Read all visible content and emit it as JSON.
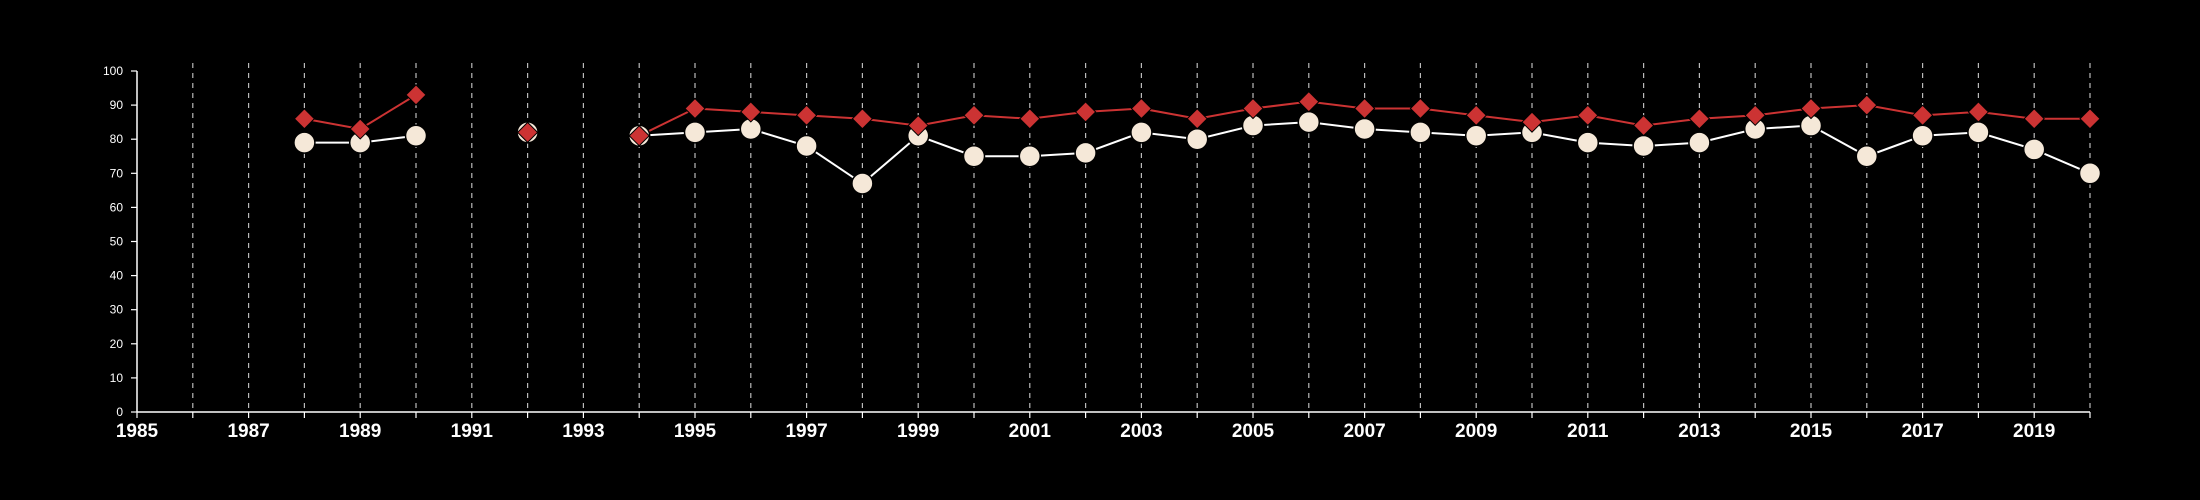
{
  "chart_data": {
    "type": "line",
    "title": "",
    "xlabel": "",
    "ylabel": "",
    "xlim": [
      1985,
      2020
    ],
    "ylim": [
      0,
      100
    ],
    "grid": "vertical dashed lines at each year",
    "legend": "none",
    "x_ticks": [
      1985,
      1987,
      1989,
      1991,
      1993,
      1995,
      1997,
      1999,
      2001,
      2003,
      2005,
      2007,
      2009,
      2011,
      2013,
      2015,
      2017,
      2019
    ],
    "y_ticks": [
      0,
      10,
      20,
      30,
      40,
      50,
      60,
      70,
      80,
      90,
      100
    ],
    "x": [
      1988,
      1989,
      1990,
      1992,
      1994,
      1995,
      1996,
      1997,
      1998,
      1999,
      2000,
      2001,
      2002,
      2003,
      2004,
      2005,
      2006,
      2007,
      2008,
      2009,
      2010,
      2011,
      2012,
      2013,
      2014,
      2015,
      2016,
      2017,
      2018,
      2019,
      2020
    ],
    "segments": [
      [
        0,
        2
      ],
      [
        3,
        3
      ],
      [
        4,
        30
      ]
    ],
    "series": [
      {
        "marker": "diamond",
        "color": "#cc3333",
        "values": [
          86,
          83,
          93,
          82,
          81,
          89,
          88,
          87,
          86,
          84,
          87,
          86,
          88,
          89,
          86,
          89,
          91,
          89,
          89,
          87,
          85,
          87,
          84,
          86,
          87,
          89,
          90,
          87,
          88,
          86,
          86
        ]
      },
      {
        "marker": "circle",
        "color": "#f5e8d8",
        "line_color": "#ffffff",
        "values": [
          79,
          79,
          81,
          82,
          81,
          82,
          83,
          78,
          67,
          81,
          75,
          75,
          76,
          82,
          80,
          84,
          85,
          83,
          82,
          81,
          82,
          79,
          78,
          79,
          83,
          84,
          75,
          81,
          82,
          77,
          70
        ]
      }
    ]
  }
}
